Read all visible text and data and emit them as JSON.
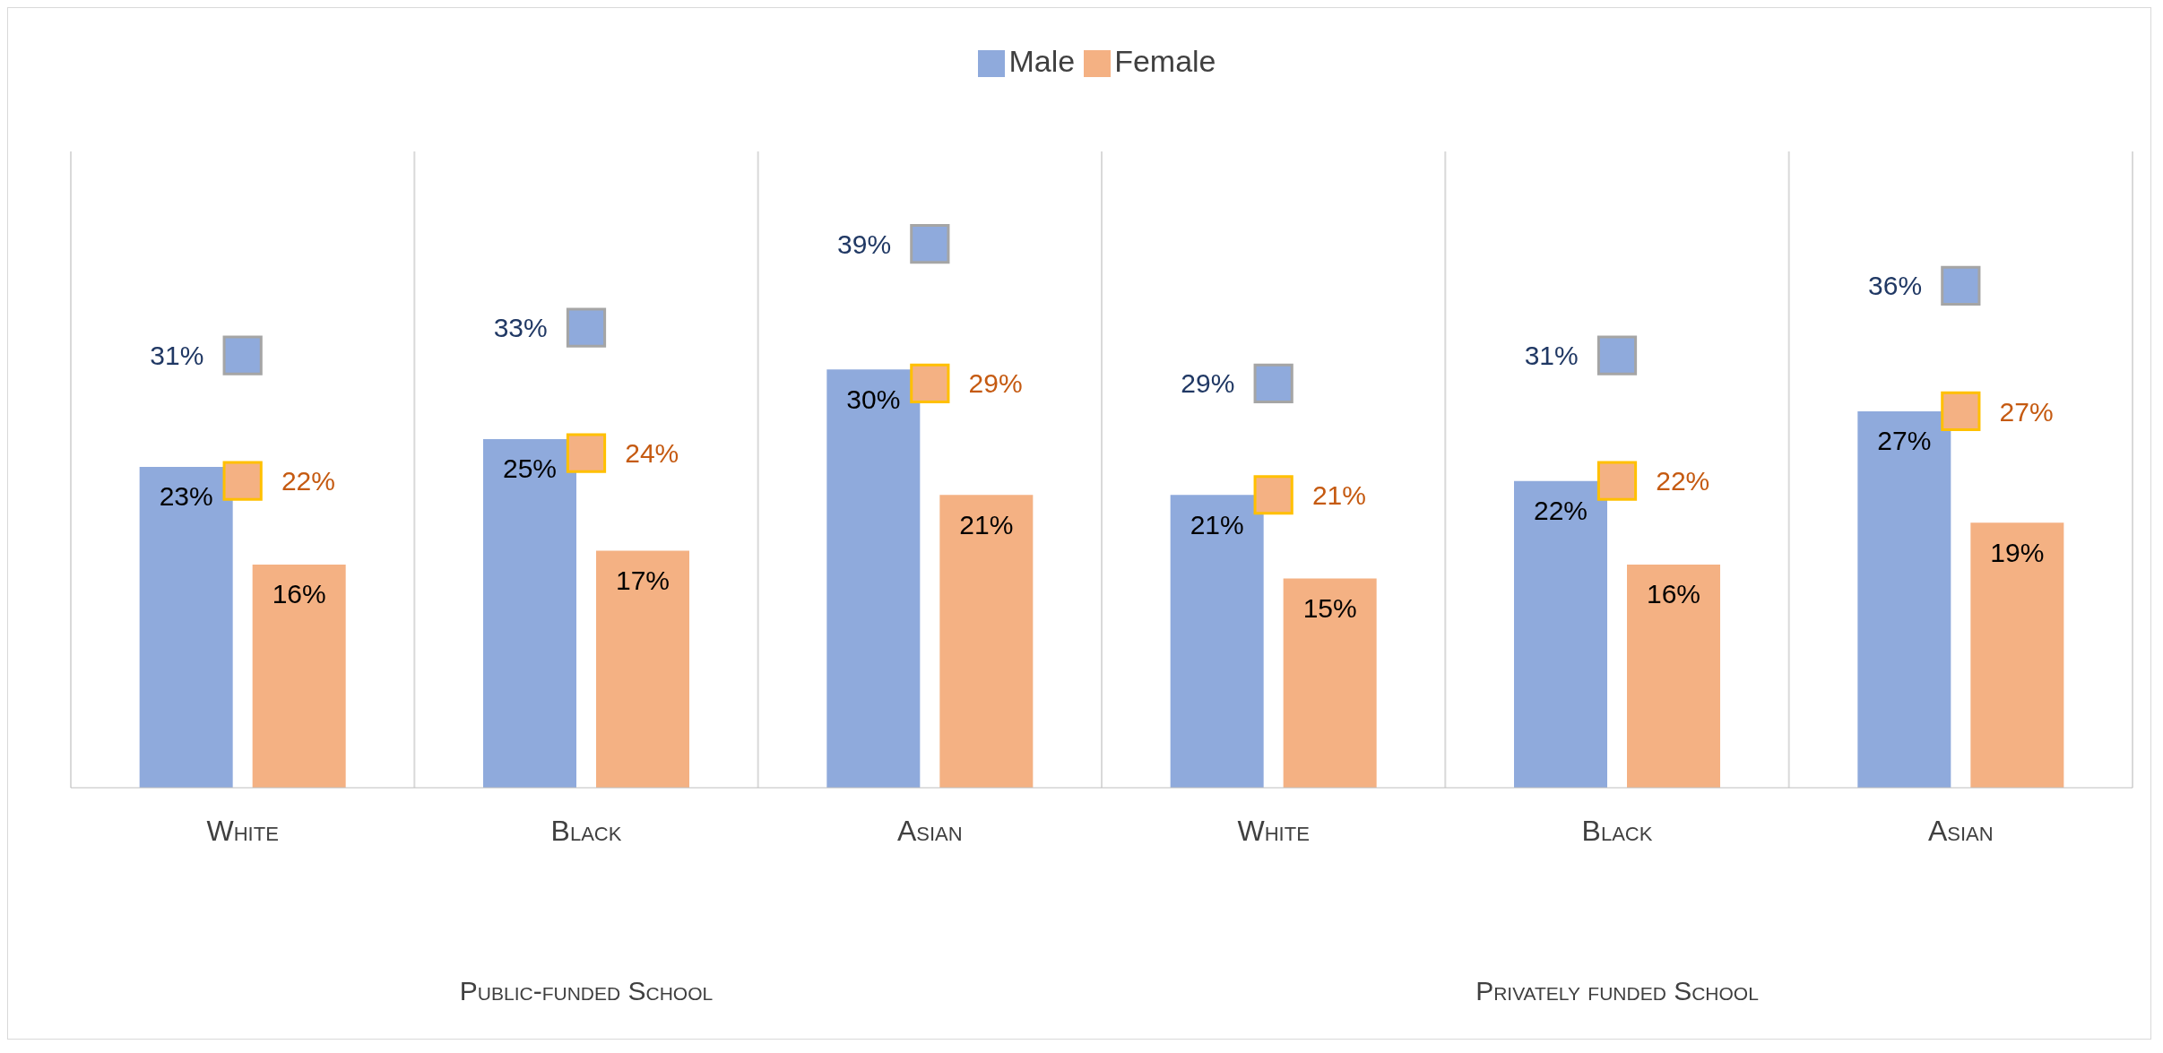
{
  "chart_data": {
    "type": "bar",
    "categories": [
      "White",
      "Black",
      "Asian",
      "White",
      "Black",
      "Asian"
    ],
    "series": [
      {
        "name": "Male",
        "color": "#8faadc",
        "values": [
          23,
          25,
          30,
          21,
          22,
          27
        ],
        "value_labels": [
          "23%",
          "25%",
          "30%",
          "21%",
          "22%",
          "27%"
        ]
      },
      {
        "name": "Female",
        "color": "#f4b183",
        "values": [
          16,
          17,
          21,
          15,
          16,
          19
        ],
        "value_labels": [
          "16%",
          "17%",
          "21%",
          "15%",
          "16%",
          "19%"
        ]
      },
      {
        "type": "scatter",
        "color": "#8faadc",
        "values": [
          31,
          33,
          39,
          29,
          31,
          36
        ],
        "value_labels": [
          "31%",
          "33%",
          "39%",
          "29%",
          "31%",
          "36%"
        ]
      },
      {
        "type": "scatter",
        "color": "#f4b183",
        "values": [
          22,
          24,
          29,
          21,
          22,
          27
        ],
        "value_labels": [
          "22%",
          "24%",
          "29%",
          "21%",
          "22%",
          "27%"
        ]
      }
    ],
    "annotations": [
      "Public-funded School",
      "Privately funded School"
    ],
    "marker": "square",
    "legend": "top",
    "grid": "x"
  }
}
